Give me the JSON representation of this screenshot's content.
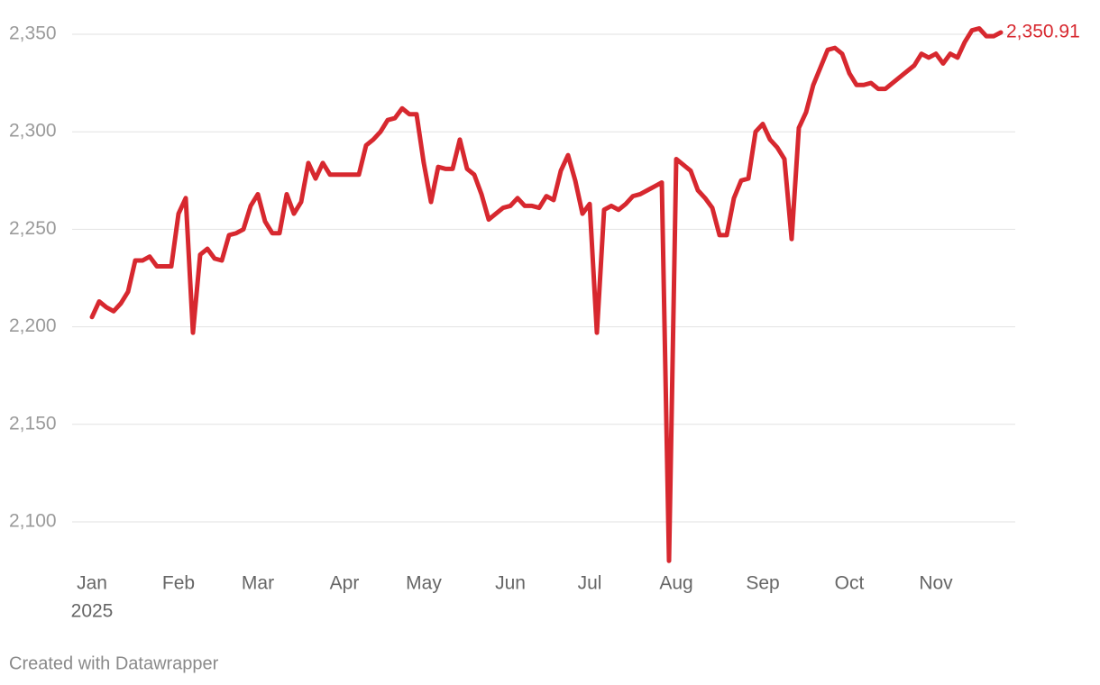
{
  "chart_data": {
    "type": "line",
    "year_label": "2025",
    "credit": "Created with Datawrapper",
    "categories": [
      "Jan",
      null,
      null,
      null,
      null,
      null,
      null,
      null,
      null,
      null,
      null,
      null,
      "Feb",
      null,
      null,
      null,
      null,
      null,
      null,
      null,
      null,
      null,
      null,
      "Mar",
      null,
      null,
      null,
      null,
      null,
      null,
      null,
      null,
      null,
      null,
      null,
      "Apr",
      null,
      null,
      null,
      null,
      null,
      null,
      null,
      null,
      null,
      null,
      "May",
      null,
      null,
      null,
      null,
      null,
      null,
      null,
      null,
      null,
      null,
      null,
      "Jun",
      null,
      null,
      null,
      null,
      null,
      null,
      null,
      null,
      null,
      null,
      "Jul",
      null,
      null,
      null,
      null,
      null,
      null,
      null,
      null,
      null,
      null,
      null,
      "Aug",
      null,
      null,
      null,
      null,
      null,
      null,
      null,
      null,
      null,
      null,
      null,
      "Sep",
      null,
      null,
      null,
      null,
      null,
      null,
      null,
      null,
      null,
      null,
      null,
      "Oct",
      null,
      null,
      null,
      null,
      null,
      null,
      null,
      null,
      null,
      null,
      null,
      "Nov",
      null,
      null,
      null,
      null,
      null,
      null,
      null,
      null,
      null
    ],
    "series": [
      {
        "color": "#d7282f",
        "values": [
          2205,
          2213,
          2210,
          2208,
          2212,
          2218,
          2234,
          2234,
          2236,
          2231,
          2231,
          2231,
          2258,
          2266,
          2197,
          2237,
          2240,
          2235,
          2234,
          2247,
          2248,
          2250,
          2262,
          2268,
          2254,
          2248,
          2248,
          2268,
          2258,
          2264,
          2284,
          2276,
          2284,
          2278,
          2278,
          2278,
          2278,
          2278,
          2293,
          2296,
          2300,
          2306,
          2307,
          2312,
          2309,
          2309,
          2284,
          2264,
          2282,
          2281,
          2281,
          2296,
          2281,
          2278,
          2268,
          2255,
          2258,
          2261,
          2262,
          2266,
          2262,
          2262,
          2261,
          2267,
          2265,
          2280,
          2288,
          2275,
          2258,
          2263,
          2197,
          2260,
          2262,
          2260,
          2263,
          2267,
          2268,
          2270,
          2272,
          2274,
          2080,
          2286,
          2283,
          2280,
          2270,
          2266,
          2261,
          2247,
          2247,
          2266,
          2275,
          2276,
          2300,
          2304,
          2296,
          2292,
          2286,
          2245,
          2302,
          2310,
          2324,
          2333,
          2342,
          2343,
          2340,
          2330,
          2324,
          2324,
          2325,
          2322,
          2322,
          2325,
          2328,
          2331,
          2334,
          2340,
          2338,
          2340,
          2335,
          2340,
          2338,
          2346,
          2352,
          2353,
          2349,
          2349,
          2350.91
        ],
        "value_labels": [
          null,
          null,
          null,
          null,
          null,
          null,
          null,
          null,
          null,
          null,
          null,
          null,
          null,
          null,
          null,
          null,
          null,
          null,
          null,
          null,
          null,
          null,
          null,
          null,
          null,
          null,
          null,
          null,
          null,
          null,
          null,
          null,
          null,
          null,
          null,
          null,
          null,
          null,
          null,
          null,
          null,
          null,
          null,
          null,
          null,
          null,
          null,
          null,
          null,
          null,
          null,
          null,
          null,
          null,
          null,
          null,
          null,
          null,
          null,
          null,
          null,
          null,
          null,
          null,
          null,
          null,
          null,
          null,
          null,
          null,
          null,
          null,
          null,
          null,
          null,
          null,
          null,
          null,
          null,
          null,
          null,
          null,
          null,
          null,
          null,
          null,
          null,
          null,
          null,
          null,
          null,
          null,
          null,
          null,
          null,
          null,
          null,
          null,
          null,
          null,
          null,
          null,
          null,
          null,
          null,
          null,
          null,
          null,
          null,
          null,
          null,
          null,
          null,
          null,
          null,
          null,
          null,
          null,
          null,
          null,
          null,
          null,
          null,
          null,
          null,
          null,
          "2,350.91"
        ]
      }
    ],
    "ylim": [
      2080,
      2360
    ],
    "yticks": [
      {
        "value": 2100,
        "label": "2,100"
      },
      {
        "value": 2150,
        "label": "2,150"
      },
      {
        "value": 2200,
        "label": "2,200"
      },
      {
        "value": 2250,
        "label": "2,250"
      },
      {
        "value": 2300,
        "label": "2,300"
      },
      {
        "value": 2350,
        "label": "2,350"
      }
    ],
    "grid": true
  }
}
